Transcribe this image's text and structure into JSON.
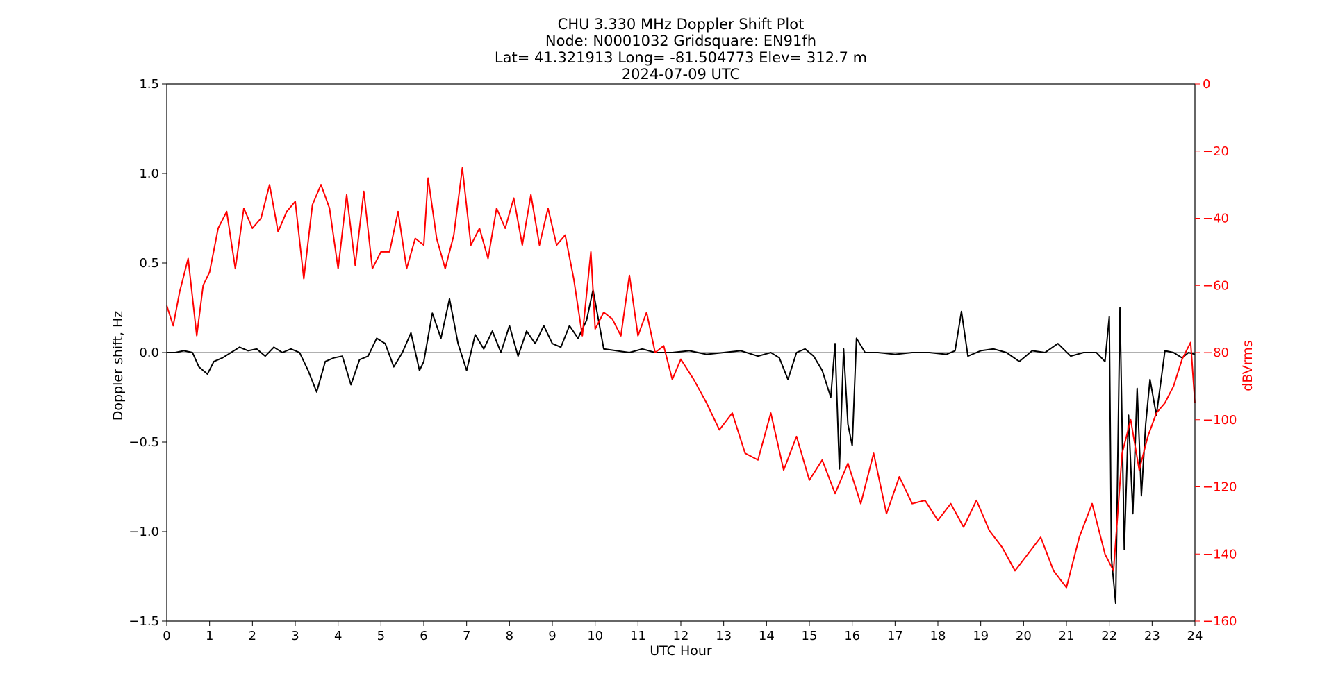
{
  "chart_data": {
    "type": "line",
    "title": [
      "CHU 3.330 MHz Doppler Shift Plot",
      "Node:  N0001032     Gridsquare:  EN91fh",
      "Lat= 41.321913    Long= -81.504773    Elev= 312.7 m",
      "2024-07-09  UTC"
    ],
    "xlabel": "UTC Hour",
    "ylabel": "Doppler shift, Hz",
    "y2label": "dBVrms",
    "xlim": [
      0,
      24
    ],
    "ylim": [
      -1.5,
      1.5
    ],
    "y2lim": [
      -160,
      0
    ],
    "xticks": [
      "0",
      "1",
      "2",
      "3",
      "4",
      "5",
      "6",
      "7",
      "8",
      "9",
      "10",
      "11",
      "12",
      "13",
      "14",
      "15",
      "16",
      "17",
      "18",
      "19",
      "20",
      "21",
      "22",
      "23",
      "24"
    ],
    "yticks": [
      "1.5",
      "1.0",
      "0.5",
      "0.0",
      "−0.5",
      "−1.0",
      "−1.5"
    ],
    "y2ticks": [
      "0",
      "−20",
      "−40",
      "−60",
      "−80",
      "−100",
      "−120",
      "−140",
      "−160"
    ],
    "zero_line": true,
    "grid": false,
    "series": [
      {
        "axis": "left",
        "color": "#000000",
        "x": [
          0,
          0.2,
          0.4,
          0.6,
          0.75,
          0.95,
          1.1,
          1.3,
          1.5,
          1.7,
          1.9,
          2.1,
          2.3,
          2.5,
          2.7,
          2.9,
          3.1,
          3.3,
          3.5,
          3.7,
          3.9,
          4.1,
          4.3,
          4.5,
          4.7,
          4.9,
          5.1,
          5.3,
          5.5,
          5.7,
          5.9,
          6.0,
          6.2,
          6.4,
          6.6,
          6.8,
          7.0,
          7.2,
          7.4,
          7.6,
          7.8,
          8.0,
          8.2,
          8.4,
          8.6,
          8.8,
          9.0,
          9.2,
          9.4,
          9.6,
          9.8,
          9.95,
          10.2,
          10.5,
          10.8,
          11.1,
          11.4,
          11.8,
          12.2,
          12.6,
          13.0,
          13.4,
          13.8,
          14.1,
          14.3,
          14.5,
          14.7,
          14.9,
          15.1,
          15.3,
          15.5,
          15.6,
          15.7,
          15.8,
          15.9,
          16.0,
          16.1,
          16.3,
          16.6,
          17.0,
          17.4,
          17.8,
          18.2,
          18.4,
          18.55,
          18.7,
          19.0,
          19.3,
          19.6,
          19.9,
          20.2,
          20.5,
          20.8,
          21.1,
          21.4,
          21.7,
          21.9,
          22.0,
          22.05,
          22.15,
          22.25,
          22.35,
          22.45,
          22.55,
          22.65,
          22.75,
          22.85,
          22.95,
          23.1,
          23.3,
          23.5,
          23.7,
          23.85,
          24.0
        ],
        "y": [
          0.0,
          0.0,
          0.01,
          0.0,
          -0.08,
          -0.12,
          -0.05,
          -0.03,
          0.0,
          0.03,
          0.01,
          0.02,
          -0.02,
          0.03,
          0.0,
          0.02,
          0.0,
          -0.1,
          -0.22,
          -0.05,
          -0.03,
          -0.02,
          -0.18,
          -0.04,
          -0.02,
          0.08,
          0.05,
          -0.08,
          0.0,
          0.11,
          -0.1,
          -0.05,
          0.22,
          0.08,
          0.3,
          0.05,
          -0.1,
          0.1,
          0.02,
          0.12,
          0.0,
          0.15,
          -0.02,
          0.12,
          0.05,
          0.15,
          0.05,
          0.03,
          0.15,
          0.08,
          0.18,
          0.35,
          0.02,
          0.01,
          0.0,
          0.02,
          0.0,
          0.0,
          0.01,
          -0.01,
          0.0,
          0.01,
          -0.02,
          0.0,
          -0.03,
          -0.15,
          0.0,
          0.02,
          -0.02,
          -0.1,
          -0.25,
          0.05,
          -0.65,
          0.02,
          -0.4,
          -0.52,
          0.08,
          0.0,
          0.0,
          -0.01,
          0.0,
          0.0,
          -0.01,
          0.01,
          0.23,
          -0.02,
          0.01,
          0.02,
          0.0,
          -0.05,
          0.01,
          0.0,
          0.05,
          -0.02,
          0.0,
          0.0,
          -0.05,
          0.2,
          -1.15,
          -1.4,
          0.25,
          -1.1,
          -0.35,
          -0.9,
          -0.2,
          -0.8,
          -0.4,
          -0.15,
          -0.35,
          0.01,
          0.0,
          -0.03,
          0.0,
          -0.01
        ]
      },
      {
        "axis": "right",
        "color": "#ff0000",
        "x": [
          0,
          0.15,
          0.3,
          0.5,
          0.7,
          0.85,
          1.0,
          1.2,
          1.4,
          1.6,
          1.8,
          2.0,
          2.2,
          2.4,
          2.6,
          2.8,
          3.0,
          3.2,
          3.4,
          3.6,
          3.8,
          4.0,
          4.2,
          4.4,
          4.6,
          4.8,
          5.0,
          5.2,
          5.4,
          5.6,
          5.8,
          6.0,
          6.1,
          6.3,
          6.5,
          6.7,
          6.9,
          7.1,
          7.3,
          7.5,
          7.7,
          7.9,
          8.1,
          8.3,
          8.5,
          8.7,
          8.9,
          9.1,
          9.3,
          9.5,
          9.7,
          9.9,
          10.0,
          10.2,
          10.4,
          10.6,
          10.8,
          11.0,
          11.2,
          11.4,
          11.6,
          11.8,
          12.0,
          12.3,
          12.6,
          12.9,
          13.2,
          13.5,
          13.8,
          14.1,
          14.4,
          14.7,
          15.0,
          15.3,
          15.6,
          15.9,
          16.2,
          16.5,
          16.8,
          17.1,
          17.4,
          17.7,
          18.0,
          18.3,
          18.6,
          18.9,
          19.2,
          19.5,
          19.8,
          20.1,
          20.4,
          20.7,
          21.0,
          21.3,
          21.6,
          21.9,
          22.1,
          22.3,
          22.5,
          22.7,
          22.9,
          23.1,
          23.3,
          23.5,
          23.7,
          23.9,
          24.0
        ],
        "y": [
          -66,
          -72,
          -62,
          -52,
          -75,
          -60,
          -56,
          -43,
          -38,
          -55,
          -37,
          -43,
          -40,
          -30,
          -44,
          -38,
          -35,
          -58,
          -36,
          -30,
          -37,
          -55,
          -33,
          -54,
          -32,
          -55,
          -50,
          -50,
          -38,
          -55,
          -46,
          -48,
          -28,
          -46,
          -55,
          -45,
          -25,
          -48,
          -43,
          -52,
          -37,
          -43,
          -34,
          -48,
          -33,
          -48,
          -37,
          -48,
          -45,
          -58,
          -75,
          -50,
          -73,
          -68,
          -70,
          -75,
          -57,
          -75,
          -68,
          -80,
          -78,
          -88,
          -82,
          -88,
          -95,
          -103,
          -98,
          -110,
          -112,
          -98,
          -115,
          -105,
          -118,
          -112,
          -122,
          -113,
          -125,
          -110,
          -128,
          -117,
          -125,
          -124,
          -130,
          -125,
          -132,
          -124,
          -133,
          -138,
          -145,
          -140,
          -135,
          -145,
          -150,
          -135,
          -125,
          -140,
          -145,
          -110,
          -100,
          -115,
          -105,
          -98,
          -95,
          -90,
          -82,
          -77,
          -95
        ]
      }
    ]
  }
}
